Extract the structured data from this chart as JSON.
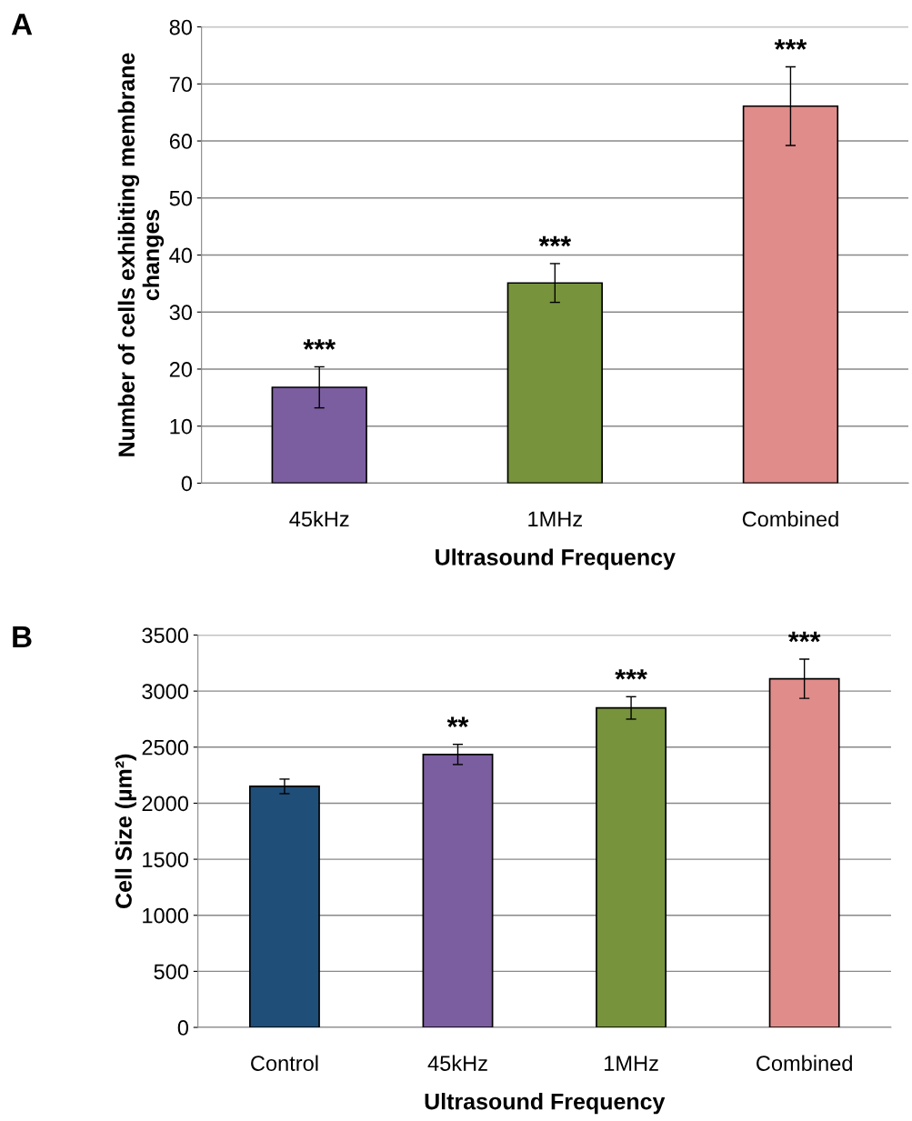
{
  "chart_data": [
    {
      "type": "bar",
      "xlabel": "Ultrasound Frequency",
      "ylabel": "Number of cells exhibiting membrane\nchanges",
      "categories": [
        "45kHz",
        "1MHz",
        "Combined"
      ],
      "values": [
        16.8,
        35.1,
        66.1
      ],
      "errors": [
        3.6,
        3.4,
        6.9
      ],
      "colors": [
        "#7b5ea0",
        "#77933c",
        "#e08c8a"
      ],
      "ylim": [
        0,
        80
      ],
      "yticks": [
        0,
        10,
        20,
        30,
        40,
        50,
        60,
        70,
        80
      ],
      "grid": "y",
      "legend": false,
      "annotations": [
        "A",
        {
          "text": "***",
          "x": "45kHz",
          "y": 20.4
        },
        {
          "text": "***",
          "x": "1MHz",
          "y": 38.5
        },
        {
          "text": "***",
          "x": "Combined",
          "y": 73.0
        }
      ]
    },
    {
      "type": "bar",
      "xlabel": "Ultrasound Frequency",
      "ylabel": "Cell Size (µm²)",
      "categories": [
        "Control",
        "45kHz",
        "1MHz",
        "Combined"
      ],
      "values": [
        2150,
        2435,
        2850,
        3110
      ],
      "errors": [
        65,
        90,
        100,
        175
      ],
      "colors": [
        "#1f4e79",
        "#7b5ea0",
        "#77933c",
        "#e08c8a"
      ],
      "ylim": [
        0,
        3500
      ],
      "yticks": [
        0,
        500,
        1000,
        1500,
        2000,
        2500,
        3000,
        3500
      ],
      "grid": "y",
      "legend": false,
      "annotations": [
        "B",
        {
          "text": "**",
          "x": "45kHz",
          "y": 2525
        },
        {
          "text": "***",
          "x": "1MHz",
          "y": 2950
        },
        {
          "text": "***",
          "x": "Combined",
          "y": 3285
        }
      ]
    }
  ]
}
